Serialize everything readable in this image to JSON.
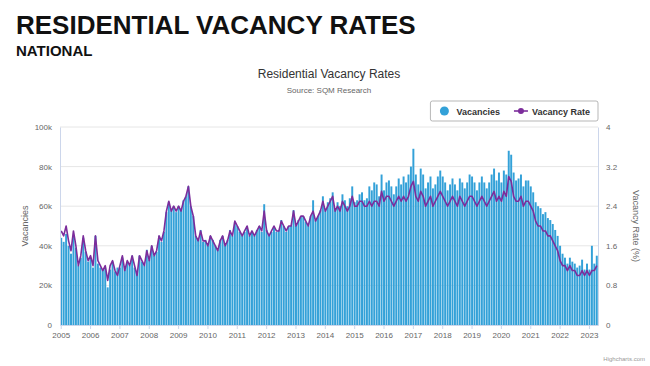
{
  "header": {
    "title": "RESIDENTIAL VACANCY RATES",
    "subtitle": "NATIONAL"
  },
  "chart_data": {
    "type": "bar",
    "title": "Residential Vacancy Rates",
    "subtitle": "Source: SQM Research",
    "credits": "Highcharts.com",
    "ylabel": "Vacancies",
    "y2label": "Vacancy Rate (%)",
    "legend": "top-right",
    "grid": true,
    "ylim": [
      0,
      100000
    ],
    "yticks": [
      0,
      {
        "value": 20000,
        "label": "20k"
      },
      {
        "value": 40000,
        "label": "40k"
      },
      {
        "value": 60000,
        "label": "60k"
      },
      {
        "value": 80000,
        "label": "80k"
      },
      {
        "value": 100000,
        "label": "100k"
      }
    ],
    "y2lim": [
      0,
      4
    ],
    "y2ticks": [
      0,
      0.8,
      1.6,
      2.4,
      3.2,
      4
    ],
    "categories": [
      "2005",
      null,
      null,
      null,
      null,
      null,
      null,
      null,
      null,
      null,
      null,
      null,
      "2006",
      null,
      null,
      null,
      null,
      null,
      null,
      null,
      null,
      null,
      null,
      null,
      "2007",
      null,
      null,
      null,
      null,
      null,
      null,
      null,
      null,
      null,
      null,
      null,
      "2008",
      null,
      null,
      null,
      null,
      null,
      null,
      null,
      null,
      null,
      null,
      null,
      "2009",
      null,
      null,
      null,
      null,
      null,
      null,
      null,
      null,
      null,
      null,
      null,
      "2010",
      null,
      null,
      null,
      null,
      null,
      null,
      null,
      null,
      null,
      null,
      null,
      "2011",
      null,
      null,
      null,
      null,
      null,
      null,
      null,
      null,
      null,
      null,
      null,
      "2012",
      null,
      null,
      null,
      null,
      null,
      null,
      null,
      null,
      null,
      null,
      null,
      "2013",
      null,
      null,
      null,
      null,
      null,
      null,
      null,
      null,
      null,
      null,
      null,
      "2014",
      null,
      null,
      null,
      null,
      null,
      null,
      null,
      null,
      null,
      null,
      null,
      "2015",
      null,
      null,
      null,
      null,
      null,
      null,
      null,
      null,
      null,
      null,
      null,
      "2016",
      null,
      null,
      null,
      null,
      null,
      null,
      null,
      null,
      null,
      null,
      null,
      "2017",
      null,
      null,
      null,
      null,
      null,
      null,
      null,
      null,
      null,
      null,
      null,
      "2018",
      null,
      null,
      null,
      null,
      null,
      null,
      null,
      null,
      null,
      null,
      null,
      "2019",
      null,
      null,
      null,
      null,
      null,
      null,
      null,
      null,
      null,
      null,
      null,
      "2020",
      null,
      null,
      null,
      null,
      null,
      null,
      null,
      null,
      null,
      null,
      null,
      "2021",
      null,
      null,
      null,
      null,
      null,
      null,
      null,
      null,
      null,
      null,
      null,
      "2022",
      null,
      null,
      null,
      null,
      null,
      null,
      null,
      null,
      null,
      null,
      null,
      "2023",
      null,
      null,
      null
    ],
    "series": [
      {
        "name": "Vacancies",
        "type": "bar",
        "color": "#33a1d8",
        "values": [
          44000,
          42000,
          46000,
          40000,
          36000,
          45000,
          39000,
          30000,
          34000,
          44000,
          37000,
          32000,
          34000,
          29000,
          45000,
          31000,
          29000,
          28000,
          29000,
          19000,
          28000,
          32000,
          27000,
          29000,
          29000,
          34000,
          28000,
          32000,
          30000,
          35000,
          29000,
          26000,
          35000,
          32000,
          30000,
          38000,
          33000,
          40000,
          35000,
          37000,
          45000,
          42000,
          47000,
          57000,
          62000,
          58000,
          60000,
          57000,
          60000,
          58000,
          63000,
          65000,
          70000,
          60000,
          55000,
          45000,
          43000,
          48000,
          42000,
          43000,
          40000,
          45000,
          43000,
          40000,
          38000,
          43000,
          45000,
          40000,
          43000,
          48000,
          45000,
          52000,
          50000,
          47000,
          45000,
          47000,
          50000,
          45000,
          47000,
          45000,
          48000,
          50000,
          47000,
          61000,
          48000,
          45000,
          47000,
          50000,
          47000,
          48000,
          53000,
          50000,
          47000,
          50000,
          50000,
          58000,
          50000,
          53000,
          55000,
          55000,
          52000,
          50000,
          55000,
          63000,
          53000,
          55000,
          58000,
          65000,
          58000,
          62000,
          64000,
          67000,
          58000,
          62000,
          60000,
          66000,
          63000,
          60000,
          64000,
          70000,
          62000,
          63000,
          66000,
          67000,
          63000,
          64000,
          70000,
          68000,
          72000,
          71000,
          65000,
          76000,
          68000,
          72000,
          73000,
          70000,
          66000,
          70000,
          74000,
          71000,
          75000,
          72000,
          76000,
          80000,
          89000,
          76000,
          71000,
          79000,
          76000,
          69000,
          72000,
          75000,
          69000,
          71000,
          75000,
          78000,
          75000,
          72000,
          68000,
          71000,
          74000,
          71000,
          68000,
          74000,
          72000,
          69000,
          72000,
          76000,
          75000,
          72000,
          68000,
          72000,
          75000,
          72000,
          69000,
          72000,
          76000,
          79000,
          73000,
          77000,
          72000,
          78000,
          76000,
          88000,
          86000,
          77000,
          73000,
          74000,
          76000,
          70000,
          73000,
          73000,
          70000,
          67000,
          62000,
          60000,
          59000,
          56000,
          57000,
          54000,
          53000,
          51000,
          48000,
          45000,
          40000,
          36000,
          34000,
          31000,
          34000,
          32000,
          31000,
          29000,
          30000,
          33000,
          28000,
          31000,
          28000,
          40000,
          31000,
          35000
        ]
      },
      {
        "name": "Vacancy Rate",
        "type": "line",
        "axis": "y2",
        "color": "#7c2d9b",
        "values": [
          1.9,
          1.8,
          2.0,
          1.7,
          1.5,
          1.9,
          1.6,
          1.2,
          1.4,
          1.8,
          1.5,
          1.3,
          1.4,
          1.2,
          1.8,
          1.3,
          1.2,
          1.1,
          1.2,
          0.9,
          1.2,
          1.3,
          1.1,
          1.0,
          1.2,
          1.4,
          1.1,
          1.3,
          1.2,
          1.4,
          1.2,
          1.0,
          1.4,
          1.3,
          1.2,
          1.5,
          1.3,
          1.6,
          1.4,
          1.5,
          1.8,
          1.7,
          1.9,
          2.3,
          2.5,
          2.3,
          2.4,
          2.3,
          2.4,
          2.3,
          2.5,
          2.6,
          2.8,
          2.4,
          2.2,
          1.8,
          1.7,
          1.9,
          1.7,
          1.7,
          1.6,
          1.8,
          1.7,
          1.6,
          1.5,
          1.7,
          1.8,
          1.6,
          1.7,
          1.9,
          1.8,
          2.1,
          2.0,
          1.9,
          1.8,
          1.9,
          2.0,
          1.8,
          1.9,
          1.8,
          1.9,
          2.0,
          1.9,
          2.3,
          1.9,
          1.8,
          1.9,
          2.0,
          1.9,
          1.9,
          2.1,
          2.0,
          1.9,
          2.0,
          2.0,
          2.3,
          2.0,
          2.1,
          2.2,
          2.2,
          2.1,
          2.0,
          2.2,
          2.3,
          2.1,
          2.2,
          2.3,
          2.5,
          2.3,
          2.4,
          2.5,
          2.6,
          2.3,
          2.4,
          2.3,
          2.5,
          2.4,
          2.3,
          2.4,
          2.6,
          2.4,
          2.4,
          2.5,
          2.5,
          2.4,
          2.4,
          2.5,
          2.4,
          2.5,
          2.5,
          2.4,
          2.7,
          2.5,
          2.6,
          2.6,
          2.5,
          2.4,
          2.5,
          2.6,
          2.5,
          2.6,
          2.5,
          2.6,
          2.8,
          2.9,
          2.6,
          2.5,
          2.7,
          2.6,
          2.4,
          2.5,
          2.6,
          2.4,
          2.5,
          2.6,
          2.7,
          2.6,
          2.5,
          2.4,
          2.5,
          2.6,
          2.5,
          2.4,
          2.6,
          2.5,
          2.4,
          2.5,
          2.6,
          2.6,
          2.5,
          2.4,
          2.5,
          2.6,
          2.5,
          2.4,
          2.5,
          2.6,
          2.7,
          2.5,
          2.6,
          2.5,
          2.7,
          2.6,
          3.0,
          2.9,
          2.6,
          2.5,
          2.5,
          2.6,
          2.4,
          2.5,
          2.5,
          2.4,
          2.3,
          2.1,
          2.0,
          2.0,
          1.9,
          1.9,
          1.8,
          1.8,
          1.7,
          1.6,
          1.5,
          1.3,
          1.2,
          1.2,
          1.1,
          1.2,
          1.1,
          1.1,
          1.0,
          1.0,
          1.1,
          1.0,
          1.1,
          1.0,
          1.1,
          1.1,
          1.2
        ]
      }
    ]
  }
}
